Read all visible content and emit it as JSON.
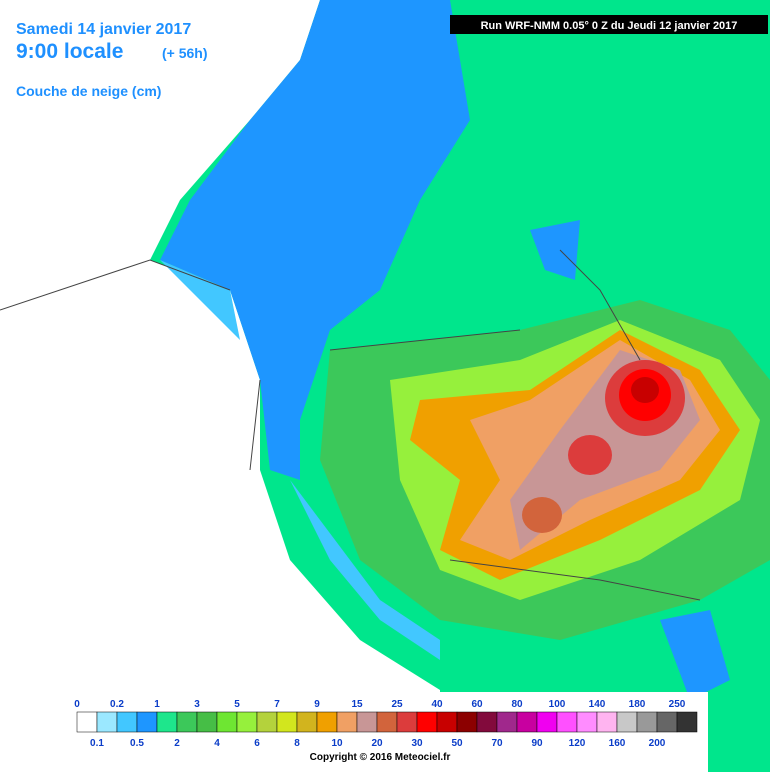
{
  "header": {
    "date": "Samedi 14 janvier 2017",
    "time": "9:00 locale",
    "lead": "(+ 56h)",
    "layer": "Couche de neige (cm)"
  },
  "run": "Run WRF-NMM 0.05° 0 Z du Jeudi 12 janvier 2017",
  "legend": {
    "labels": [
      "0",
      "0.1",
      "0.2",
      "0.5",
      "1",
      "2",
      "3",
      "4",
      "5",
      "6",
      "7",
      "8",
      "9",
      "10",
      "15",
      "20",
      "25",
      "30",
      "40",
      "50",
      "60",
      "70",
      "80",
      "90",
      "100",
      "120",
      "140",
      "160",
      "180",
      "200",
      "250"
    ],
    "colors": [
      "#ffffff",
      "#9be8ff",
      "#42c7ff",
      "#1e96ff",
      "#1ee68c",
      "#3cc85a",
      "#46be46",
      "#6ee632",
      "#96f03c",
      "#b4d23c",
      "#d2e61e",
      "#d2b41e",
      "#f0a000",
      "#f0a064",
      "#c89696",
      "#d2643c",
      "#dc3c3c",
      "#ff0000",
      "#c80000",
      "#8c0000",
      "#820a3c",
      "#a0288c",
      "#c800a0",
      "#f000f0",
      "#ff50ff",
      "#ff8cff",
      "#ffb4f0",
      "#c8c8c8",
      "#999999",
      "#666666",
      "#333333"
    ]
  },
  "copyright": "Copyright © 2016 Meteociel.fr"
}
